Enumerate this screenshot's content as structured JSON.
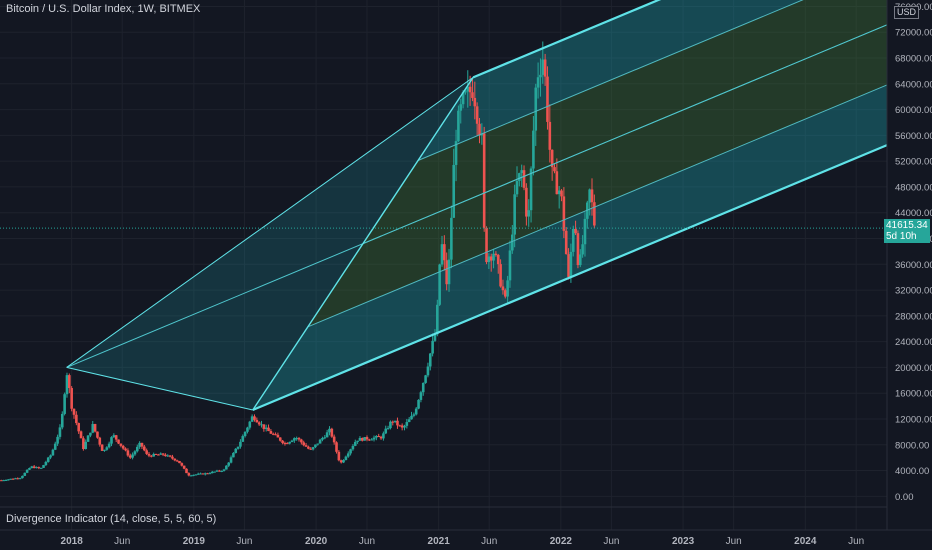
{
  "header": {
    "title": "Bitcoin / U.S. Dollar Index, 1W, BITMEX",
    "currency": "USD"
  },
  "indicator": {
    "label": "Divergence Indicator (14, close, 5, 5, 60, 5)"
  },
  "last_price": {
    "value": "41615.34",
    "countdown": "5d 10h"
  },
  "colors": {
    "background": "#131722",
    "up": "#26a69a",
    "down": "#ef5350",
    "channel_line": "#5fe3e8",
    "channel_fill_outer": "#1fbcc6",
    "channel_fill_inner": "#4a8a3a"
  },
  "chart_data": {
    "type": "candlestick",
    "y_axis": {
      "ticks": [
        0,
        4000,
        8000,
        12000,
        16000,
        20000,
        24000,
        28000,
        32000,
        36000,
        40000,
        44000,
        48000,
        52000,
        56000,
        60000,
        64000,
        68000,
        72000,
        76000
      ],
      "tick_labels": [
        "0.00",
        "4000.00",
        "8000.00",
        "12000.00",
        "16000.00",
        "20000.00",
        "24000.00",
        "28000.00",
        "32000.00",
        "36000.00",
        "40000.00",
        "44000.00",
        "48000.00",
        "52000.00",
        "56000.00",
        "60000.00",
        "64000.00",
        "68000.00",
        "72000.00",
        "76000.00"
      ],
      "range": [
        -1500,
        77000
      ]
    },
    "x_axis": {
      "range": [
        "2017-06-01",
        "2024-09-01"
      ],
      "ticks": [
        {
          "date": "2018-01-01",
          "label": "2018"
        },
        {
          "date": "2018-06-01",
          "label": "Jun"
        },
        {
          "date": "2019-01-01",
          "label": "2019"
        },
        {
          "date": "2019-06-01",
          "label": "Jun"
        },
        {
          "date": "2020-01-01",
          "label": "2020"
        },
        {
          "date": "2020-06-01",
          "label": "Jun"
        },
        {
          "date": "2021-01-01",
          "label": "2021"
        },
        {
          "date": "2021-06-01",
          "label": "Jun"
        },
        {
          "date": "2022-01-01",
          "label": "2022"
        },
        {
          "date": "2022-06-01",
          "label": "Jun"
        },
        {
          "date": "2023-01-01",
          "label": "2023"
        },
        {
          "date": "2023-06-01",
          "label": "Jun"
        },
        {
          "date": "2024-01-01",
          "label": "2024"
        },
        {
          "date": "2024-06-01",
          "label": "Jun"
        }
      ]
    },
    "last_price": 41615.34,
    "price_path": [
      [
        "2017-06-05",
        2500
      ],
      [
        "2017-08-01",
        2900
      ],
      [
        "2017-09-01",
        4600
      ],
      [
        "2017-10-01",
        4300
      ],
      [
        "2017-11-01",
        6500
      ],
      [
        "2017-12-01",
        11000
      ],
      [
        "2017-12-17",
        19500
      ],
      [
        "2018-01-01",
        14000
      ],
      [
        "2018-02-05",
        7500
      ],
      [
        "2018-03-05",
        11000
      ],
      [
        "2018-04-05",
        6800
      ],
      [
        "2018-05-05",
        9500
      ],
      [
        "2018-06-25",
        6000
      ],
      [
        "2018-07-25",
        8200
      ],
      [
        "2018-08-15",
        6300
      ],
      [
        "2018-10-01",
        6500
      ],
      [
        "2018-11-15",
        5500
      ],
      [
        "2018-12-15",
        3300
      ],
      [
        "2019-02-01",
        3500
      ],
      [
        "2019-04-01",
        4100
      ],
      [
        "2019-05-15",
        8000
      ],
      [
        "2019-06-26",
        12500
      ],
      [
        "2019-08-01",
        10500
      ],
      [
        "2019-10-01",
        8200
      ],
      [
        "2019-11-01",
        9200
      ],
      [
        "2019-12-15",
        7100
      ],
      [
        "2020-02-12",
        10300
      ],
      [
        "2020-03-13",
        5000
      ],
      [
        "2020-05-01",
        8800
      ],
      [
        "2020-07-15",
        9200
      ],
      [
        "2020-08-15",
        11800
      ],
      [
        "2020-09-15",
        10500
      ],
      [
        "2020-10-20",
        12800
      ],
      [
        "2020-11-20",
        18500
      ],
      [
        "2020-12-25",
        26000
      ],
      [
        "2021-01-08",
        40000
      ],
      [
        "2021-01-28",
        32000
      ],
      [
        "2021-02-20",
        56000
      ],
      [
        "2021-03-13",
        61000
      ],
      [
        "2021-04-14",
        63500
      ],
      [
        "2021-05-10",
        55000
      ],
      [
        "2021-05-19",
        37000
      ],
      [
        "2021-06-15",
        38000
      ],
      [
        "2021-07-20",
        30000
      ],
      [
        "2021-08-20",
        48000
      ],
      [
        "2021-09-07",
        50500
      ],
      [
        "2021-09-25",
        42000
      ],
      [
        "2021-10-20",
        65000
      ],
      [
        "2021-11-10",
        68500
      ],
      [
        "2021-12-04",
        50000
      ],
      [
        "2022-01-01",
        47000
      ],
      [
        "2022-01-24",
        33500
      ],
      [
        "2022-02-10",
        44000
      ],
      [
        "2022-02-24",
        35000
      ],
      [
        "2022-03-29",
        47500
      ],
      [
        "2022-04-13",
        41615.34
      ]
    ],
    "pitchfork": {
      "pivots": [
        [
          "2017-12-17",
          20000
        ],
        [
          "2021-04-14",
          65000
        ],
        [
          "2019-06-26",
          13400
        ]
      ],
      "median_fraction_levels": [
        -1,
        -0.5,
        0,
        0.5,
        1
      ]
    }
  }
}
